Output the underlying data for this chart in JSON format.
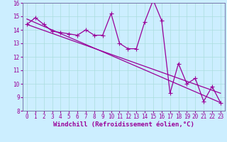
{
  "xlabel": "Windchill (Refroidissement éolien,°C)",
  "bg_color": "#cceeff",
  "line_color": "#990099",
  "grid_color": "#aadddd",
  "spine_color": "#7777aa",
  "xlim": [
    -0.5,
    23.5
  ],
  "ylim": [
    8,
    16
  ],
  "xticks": [
    0,
    1,
    2,
    3,
    4,
    5,
    6,
    7,
    8,
    9,
    10,
    11,
    12,
    13,
    14,
    15,
    16,
    17,
    18,
    19,
    20,
    21,
    22,
    23
  ],
  "yticks": [
    8,
    9,
    10,
    11,
    12,
    13,
    14,
    15,
    16
  ],
  "line1_x": [
    0,
    1,
    2,
    3,
    4,
    5,
    6,
    7,
    8,
    9,
    10,
    11,
    12,
    13,
    14,
    15,
    16,
    17,
    18,
    19,
    20,
    21,
    22,
    23
  ],
  "line1_y": [
    14.4,
    14.9,
    14.4,
    13.9,
    13.8,
    13.7,
    13.6,
    14.0,
    13.6,
    13.6,
    15.2,
    13.0,
    12.6,
    12.6,
    14.6,
    16.2,
    14.7,
    9.3,
    11.5,
    10.0,
    10.4,
    8.7,
    9.8,
    8.6
  ],
  "line2_x": [
    0,
    23
  ],
  "line2_y": [
    14.8,
    8.6
  ],
  "line3_x": [
    0,
    23
  ],
  "line3_y": [
    14.4,
    9.3
  ],
  "tick_font_size": 5.5,
  "xlabel_font_size": 6.5,
  "marker_size": 2.0
}
